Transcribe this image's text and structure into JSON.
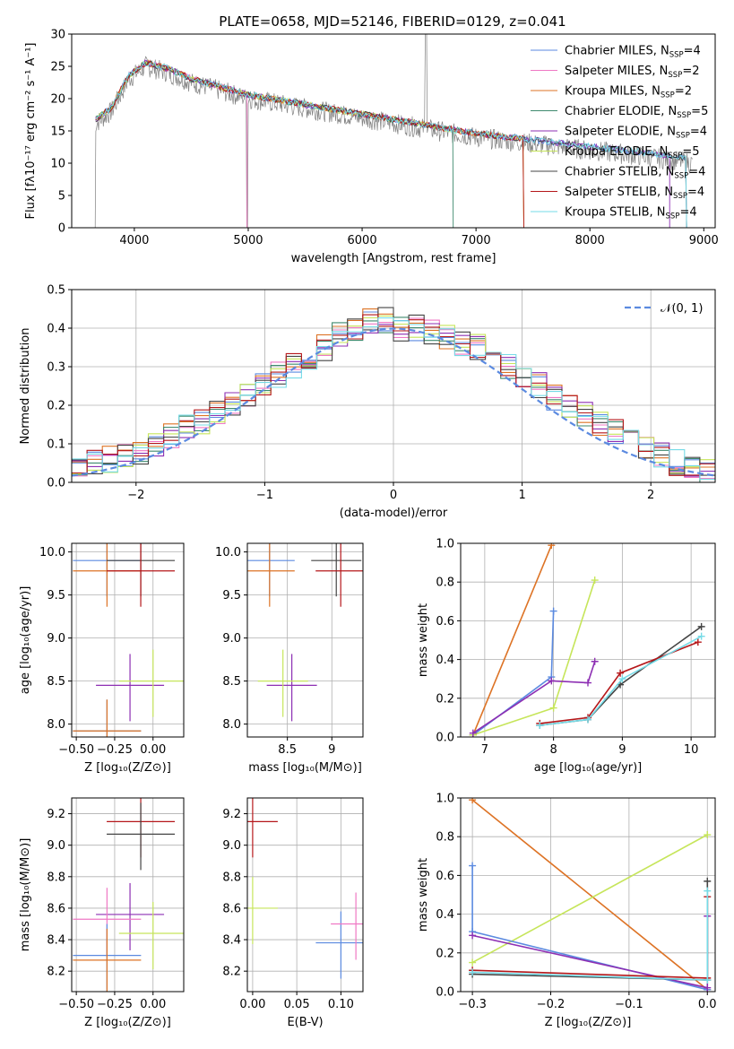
{
  "title": "PLATE=0658, MJD=52146, FIBERID=0129, z=0.041",
  "colors": {
    "c0": "#5b8ae0",
    "c1": "#ef78c4",
    "c2": "#dd7325",
    "c3": "#3f8a6e",
    "c4": "#8d2fb3",
    "c5": "#c6e55a",
    "c6": "#444444",
    "c7": "#b5171a",
    "c8": "#76dbe7",
    "gray": "#808080",
    "norm": "#5b8ae0"
  },
  "chart_data": [
    {
      "id": "spectrum",
      "type": "line",
      "xlabel": "wavelength [Angstrom, rest frame]",
      "ylabel": "Flux [fλ10⁻¹⁷ erg cm⁻² s⁻¹ A⁻¹]",
      "xlim": [
        3450,
        9100
      ],
      "ylim": [
        0,
        30
      ],
      "xticks": [
        4000,
        5000,
        6000,
        7000,
        8000,
        9000
      ],
      "yticks": [
        0,
        5,
        10,
        15,
        20,
        25,
        30
      ],
      "legend": [
        {
          "label": "Chabrier MILES, N",
          "sub": "SSP",
          "suffix": "=4"
        },
        {
          "label": "Salpeter MILES, N",
          "sub": "SSP",
          "suffix": "=2"
        },
        {
          "label": "Kroupa MILES, N",
          "sub": "SSP",
          "suffix": "=2"
        },
        {
          "label": "Chabrier ELODIE, N",
          "sub": "SSP",
          "suffix": "=5"
        },
        {
          "label": "Salpeter ELODIE, N",
          "sub": "SSP",
          "suffix": "=4"
        },
        {
          "label": "Kroupa ELODIE, N",
          "sub": "SSP",
          "suffix": "=5"
        },
        {
          "label": "Chabrier STELIB, N",
          "sub": "SSP",
          "suffix": "=4"
        },
        {
          "label": "Salpeter STELIB, N",
          "sub": "SSP",
          "suffix": "=4"
        },
        {
          "label": "Kroupa STELIB, N",
          "sub": "SSP",
          "suffix": "=4"
        }
      ],
      "continuum": [
        [
          3650,
          16
        ],
        [
          3800,
          18
        ],
        [
          3950,
          23
        ],
        [
          4100,
          25
        ],
        [
          4300,
          24
        ],
        [
          4500,
          22.5
        ],
        [
          4800,
          21
        ],
        [
          5000,
          20
        ],
        [
          5500,
          18.5
        ],
        [
          6000,
          17
        ],
        [
          6500,
          15.5
        ],
        [
          7000,
          14
        ],
        [
          7500,
          13
        ],
        [
          8000,
          12
        ],
        [
          8500,
          11
        ],
        [
          8900,
          10
        ]
      ]
    },
    {
      "id": "residuals",
      "type": "line",
      "xlabel": "(data-model)/error",
      "ylabel": "Normed distribution",
      "xlim": [
        -2.5,
        2.5
      ],
      "ylim": [
        0,
        0.5
      ],
      "xticks": [
        -2,
        -1,
        0,
        1,
        2
      ],
      "yticks": [
        0.0,
        0.1,
        0.2,
        0.3,
        0.4,
        0.5
      ],
      "grid": true,
      "legend": [
        {
          "label": "𝒩(0, 1)"
        }
      ],
      "histogram": [
        0.04,
        0.05,
        0.06,
        0.07,
        0.08,
        0.1,
        0.12,
        0.14,
        0.16,
        0.18,
        0.2,
        0.23,
        0.25,
        0.28,
        0.3,
        0.32,
        0.35,
        0.38,
        0.4,
        0.42,
        0.42,
        0.4,
        0.4,
        0.39,
        0.38,
        0.36,
        0.35,
        0.32,
        0.3,
        0.28,
        0.25,
        0.22,
        0.2,
        0.18,
        0.15,
        0.13,
        0.11,
        0.09,
        0.07,
        0.05,
        0.04,
        0.03
      ]
    },
    {
      "id": "age_vs_Z",
      "type": "scatter",
      "xlabel": "Z [log₁₀(Z/Z⊙)]",
      "ylabel": "age  [log₁₀(age/yr)]",
      "xlim": [
        -0.53,
        0.2
      ],
      "ylim": [
        7.85,
        10.1
      ],
      "xticks": [
        -0.5,
        -0.25,
        0.0
      ],
      "xticklabels": [
        "−0.50",
        "−0.25",
        "0.00"
      ],
      "yticks": [
        8.0,
        8.5,
        9.0,
        9.5,
        10.0
      ],
      "points": [
        {
          "x": -0.3,
          "y": 9.9,
          "c": "c0"
        },
        {
          "x": -0.3,
          "y": 9.78,
          "c": "c2"
        },
        {
          "x": -0.08,
          "y": 9.9,
          "c": "c6"
        },
        {
          "x": -0.08,
          "y": 9.78,
          "c": "c7"
        },
        {
          "x": -0.15,
          "y": 8.45,
          "c": "c4"
        },
        {
          "x": 0.0,
          "y": 8.5,
          "c": "c5"
        },
        {
          "x": -0.3,
          "y": 7.92,
          "c": "c0"
        },
        {
          "x": -0.3,
          "y": 7.92,
          "c": "c2"
        }
      ]
    },
    {
      "id": "age_vs_mass",
      "type": "scatter",
      "xlabel": "mass [log₁₀(M/M⊙)]",
      "ylabel": "",
      "xlim": [
        8.05,
        9.35
      ],
      "ylim": [
        7.85,
        10.1
      ],
      "xticks": [
        8.5,
        9.0
      ],
      "yticks": [
        8.0,
        8.5,
        9.0,
        9.5,
        10.0
      ],
      "points": [
        {
          "x": 8.3,
          "y": 9.9,
          "c": "c0"
        },
        {
          "x": 8.3,
          "y": 9.78,
          "c": "c2"
        },
        {
          "x": 9.05,
          "y": 9.9,
          "c": "c6"
        },
        {
          "x": 9.1,
          "y": 9.78,
          "c": "c7"
        },
        {
          "x": 8.55,
          "y": 8.45,
          "c": "c4"
        },
        {
          "x": 8.45,
          "y": 8.5,
          "c": "c5"
        }
      ]
    },
    {
      "id": "mw_vs_age",
      "type": "line",
      "xlabel": "age  [log₁₀(age/yr)]",
      "ylabel": "mass weight",
      "xlim": [
        6.65,
        10.35
      ],
      "ylim": [
        0,
        1.0
      ],
      "xticks": [
        7,
        8,
        9,
        10
      ],
      "yticks": [
        0.0,
        0.2,
        0.4,
        0.6,
        0.8,
        1.0
      ],
      "series": [
        {
          "c": "c2",
          "x": [
            6.83,
            7.97
          ],
          "y": [
            0.01,
            0.99
          ]
        },
        {
          "c": "c0",
          "x": [
            6.83,
            7.97,
            8.0
          ],
          "y": [
            0.01,
            0.31,
            0.65
          ]
        },
        {
          "c": "c5",
          "x": [
            6.83,
            8.0,
            8.6
          ],
          "y": [
            0.01,
            0.15,
            0.81
          ]
        },
        {
          "c": "c4",
          "x": [
            6.83,
            7.97,
            8.5,
            8.6
          ],
          "y": [
            0.02,
            0.29,
            0.28,
            0.39
          ]
        },
        {
          "c": "c6",
          "x": [
            7.8,
            8.5,
            8.97,
            10.15
          ],
          "y": [
            0.06,
            0.09,
            0.27,
            0.57
          ]
        },
        {
          "c": "c7",
          "x": [
            7.8,
            8.5,
            8.97,
            10.1
          ],
          "y": [
            0.07,
            0.1,
            0.33,
            0.49
          ]
        },
        {
          "c": "c8",
          "x": [
            7.8,
            8.5,
            9.0,
            10.15
          ],
          "y": [
            0.06,
            0.09,
            0.3,
            0.52
          ]
        }
      ]
    },
    {
      "id": "mass_vs_Z",
      "type": "scatter",
      "xlabel": "Z [log₁₀(Z/Z⊙)]",
      "ylabel": "mass [log₁₀(M/M⊙)]",
      "xlim": [
        -0.53,
        0.2
      ],
      "ylim": [
        8.07,
        9.3
      ],
      "xticks": [
        -0.5,
        -0.25,
        0.0
      ],
      "xticklabels": [
        "−0.50",
        "−0.25",
        "0.00"
      ],
      "yticks": [
        8.2,
        8.4,
        8.6,
        8.8,
        9.0,
        9.2
      ],
      "points": [
        {
          "x": -0.08,
          "y": 9.15,
          "c": "c7"
        },
        {
          "x": -0.08,
          "y": 9.07,
          "c": "c6"
        },
        {
          "x": -0.15,
          "y": 8.56,
          "c": "c4"
        },
        {
          "x": -0.3,
          "y": 8.53,
          "c": "c1"
        },
        {
          "x": 0.0,
          "y": 8.44,
          "c": "c5"
        },
        {
          "x": -0.3,
          "y": 8.3,
          "c": "c0"
        },
        {
          "x": -0.3,
          "y": 8.27,
          "c": "c2"
        }
      ]
    },
    {
      "id": "mass_vs_ebv",
      "type": "scatter",
      "xlabel": "E(B-V)",
      "ylabel": "",
      "xlim": [
        -0.006,
        0.125
      ],
      "ylim": [
        8.07,
        9.3
      ],
      "xticks": [
        0.0,
        0.05,
        0.1
      ],
      "xticklabels": [
        "0.00",
        "0.05",
        "0.10"
      ],
      "yticks": [
        8.2,
        8.4,
        8.6,
        8.8,
        9.0,
        9.2
      ],
      "points": [
        {
          "x": 0.0,
          "y": 9.15,
          "c": "c7"
        },
        {
          "x": 0.0,
          "y": 8.6,
          "c": "c5"
        },
        {
          "x": 0.1,
          "y": 8.38,
          "c": "c0"
        },
        {
          "x": 0.117,
          "y": 8.5,
          "c": "c1"
        }
      ]
    },
    {
      "id": "mw_vs_Z",
      "type": "line",
      "xlabel": "Z [log₁₀(Z/Z⊙)]",
      "ylabel": "mass weight",
      "xlim": [
        -0.315,
        0.01
      ],
      "ylim": [
        0,
        1.0
      ],
      "xticks": [
        -0.3,
        -0.2,
        -0.1,
        0.0
      ],
      "xticklabels": [
        "−0.3",
        "−0.2",
        "−0.1",
        "0.0"
      ],
      "yticks": [
        0.0,
        0.2,
        0.4,
        0.6,
        0.8,
        1.0
      ],
      "series": [
        {
          "c": "c2",
          "x": [
            -0.3,
            0.0
          ],
          "y": [
            0.99,
            0.01
          ]
        },
        {
          "c": "c5",
          "x": [
            -0.3,
            0.0
          ],
          "y": [
            0.15,
            0.81
          ]
        },
        {
          "c": "c0",
          "x": [
            -0.3,
            -0.3,
            0.0
          ],
          "y": [
            0.65,
            0.31,
            0.01
          ]
        },
        {
          "c": "c4",
          "x": [
            -0.3,
            0.0,
            0.0
          ],
          "y": [
            0.29,
            0.02,
            0.39
          ]
        },
        {
          "c": "c7",
          "x": [
            -0.3,
            0.0,
            0.0
          ],
          "y": [
            0.11,
            0.07,
            0.49
          ]
        },
        {
          "c": "c6",
          "x": [
            -0.3,
            0.0,
            0.0
          ],
          "y": [
            0.09,
            0.06,
            0.57
          ]
        },
        {
          "c": "c8",
          "x": [
            -0.3,
            0.0,
            0.0
          ],
          "y": [
            0.1,
            0.06,
            0.52
          ]
        }
      ]
    }
  ]
}
